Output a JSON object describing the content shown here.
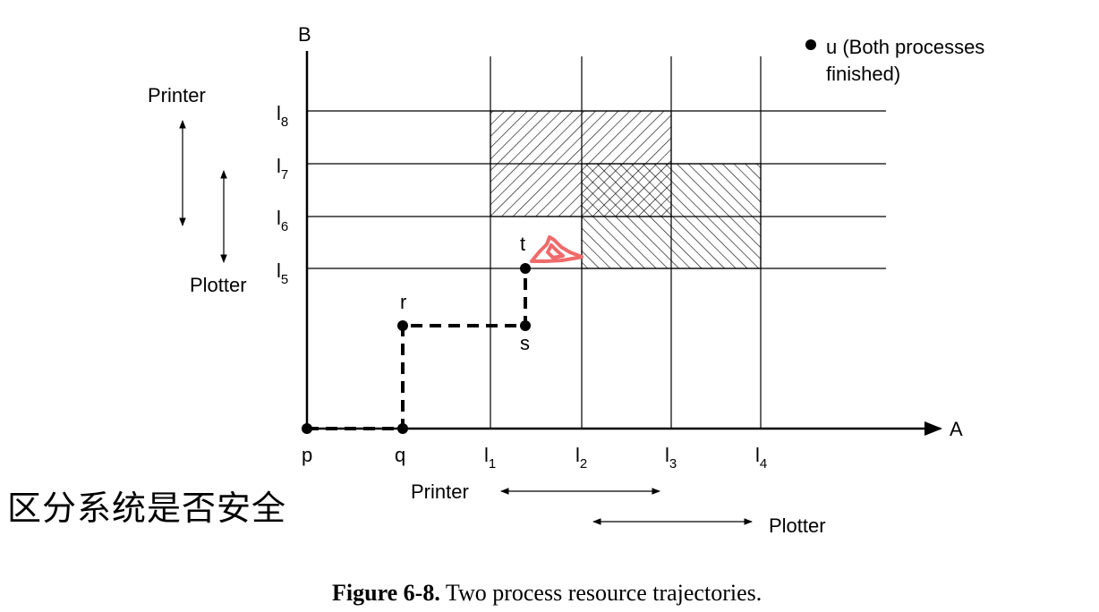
{
  "axes": {
    "x_label": "A",
    "y_label": "B",
    "x_ticks": [
      {
        "main": "l",
        "sub": "1"
      },
      {
        "main": "l",
        "sub": "2"
      },
      {
        "main": "l",
        "sub": "3"
      },
      {
        "main": "l",
        "sub": "4"
      }
    ],
    "y_ticks": [
      {
        "main": "l",
        "sub": "5"
      },
      {
        "main": "l",
        "sub": "6"
      },
      {
        "main": "l",
        "sub": "7"
      },
      {
        "main": "l",
        "sub": "8"
      }
    ]
  },
  "points": {
    "p": "p",
    "q": "q",
    "r": "r",
    "s": "s",
    "t": "t"
  },
  "legend": {
    "line1": "u (Both processes",
    "line2": "finished)"
  },
  "resource_labels": {
    "b_printer": "Printer",
    "b_plotter": "Plotter",
    "a_printer": "Printer",
    "a_plotter": "Plotter"
  },
  "annotation": {
    "text": "区分系统是否安全",
    "mark_color": "#f06a6a"
  },
  "caption": {
    "label": "Figure 6-8.",
    "text": "Two process resource trajectories."
  }
}
